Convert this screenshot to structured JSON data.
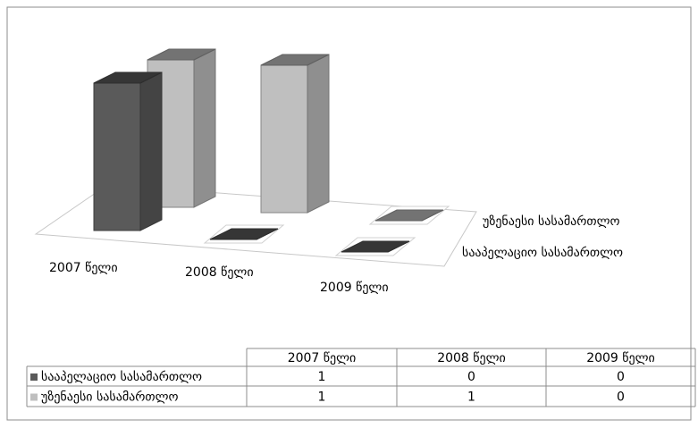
{
  "chart_data": {
    "type": "bar3d",
    "categories": [
      "2007 წელი",
      "2008 წელი",
      "2009 წელი"
    ],
    "series": [
      {
        "name": "სააპელაციო სასამართლო",
        "color": "#5a5a5a",
        "values": [
          1,
          0,
          0
        ]
      },
      {
        "name": "უზენაესი სასამართლო",
        "color": "#bfbfbf",
        "values": [
          1,
          1,
          0
        ]
      }
    ]
  }
}
